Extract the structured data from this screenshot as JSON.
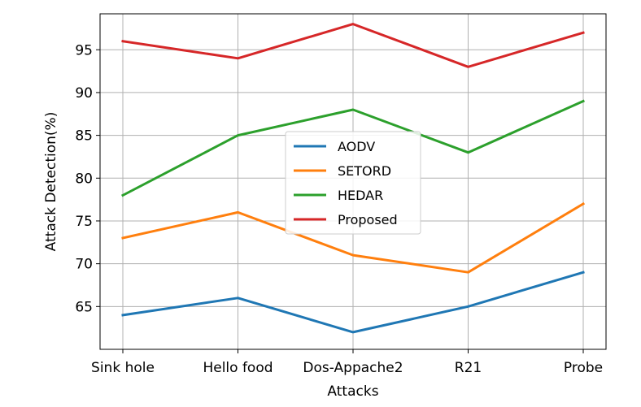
{
  "chart_data": {
    "type": "line",
    "title": "",
    "xlabel": "Attacks",
    "ylabel": "Attack Detection(%)",
    "categories": [
      "Sink hole",
      "Hello food",
      "Dos-Appache2",
      "R21",
      "Probe"
    ],
    "ylim": [
      60,
      99.2
    ],
    "yticks": [
      65,
      70,
      75,
      80,
      85,
      90,
      95
    ],
    "grid": true,
    "legend_position": "center",
    "series": [
      {
        "name": "AODV",
        "color": "#1f77b4",
        "values": [
          64,
          66,
          62,
          65,
          69
        ]
      },
      {
        "name": "SETORD",
        "color": "#ff7f0e",
        "values": [
          73,
          76,
          71,
          69,
          77
        ]
      },
      {
        "name": "HEDAR",
        "color": "#2ca02c",
        "values": [
          78,
          85,
          88,
          83,
          89
        ]
      },
      {
        "name": "Proposed",
        "color": "#d62728",
        "values": [
          96,
          94,
          98,
          93,
          97
        ]
      }
    ]
  }
}
